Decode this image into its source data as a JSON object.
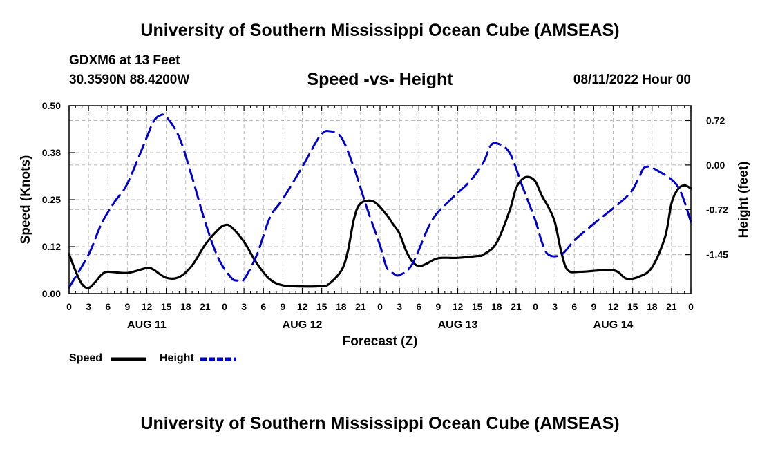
{
  "header": {
    "title": "University of Southern Mississippi Ocean Cube (AMSEAS)",
    "station": "GDXM6 at 13 Feet",
    "coords": "30.3590N  88.4200W",
    "subtitle": "Speed -vs- Height",
    "date": "08/11/2022 Hour 00"
  },
  "footer": {
    "title": "University of Southern Mississippi Ocean Cube (AMSEAS)"
  },
  "colors": {
    "speed": "#000000",
    "height": "#0000cc",
    "grid": "#bbbbbb"
  },
  "chart_data": {
    "type": "line",
    "title": "Speed -vs- Height",
    "xlabel": "Forecast (Z)",
    "ylabel": "Speed (Knots)",
    "y2label": "Height (feet)",
    "xlim": [
      0,
      96
    ],
    "ylim": [
      0,
      0.5
    ],
    "y2lim": [
      -2.08,
      0.96
    ],
    "x_ticks": [
      0,
      3,
      6,
      9,
      12,
      15,
      18,
      21,
      24,
      27,
      30,
      33,
      36,
      39,
      42,
      45,
      48,
      51,
      54,
      57,
      60,
      63,
      66,
      69,
      72,
      75,
      78,
      81,
      84,
      87,
      90,
      93,
      96
    ],
    "x_tick_labels": [
      "0",
      "3",
      "6",
      "9",
      "12",
      "15",
      "18",
      "21",
      "0",
      "3",
      "6",
      "9",
      "12",
      "15",
      "18",
      "21",
      "0",
      "3",
      "6",
      "9",
      "12",
      "15",
      "18",
      "21",
      "0",
      "3",
      "6",
      "9",
      "12",
      "15",
      "18",
      "21",
      "0"
    ],
    "y_ticks": [
      0,
      0.125,
      0.25,
      0.375,
      0.5
    ],
    "y_tick_labels": [
      "0.00",
      "0.12",
      "0.25",
      "0.38",
      "0.50"
    ],
    "y2_ticks": [
      -1.45,
      -0.72,
      0.0,
      0.72
    ],
    "y2_tick_labels": [
      "-1.45",
      "-0.72",
      "0.00",
      "0.72"
    ],
    "day_labels": [
      {
        "x": 12,
        "label": "AUG 11"
      },
      {
        "x": 36,
        "label": "AUG 12"
      },
      {
        "x": 60,
        "label": "AUG 13"
      },
      {
        "x": 84,
        "label": "AUG 14"
      }
    ],
    "legend": [
      {
        "name": "Speed",
        "color": "#000000",
        "style": "solid"
      },
      {
        "name": "Height",
        "color": "#0000cc",
        "style": "dashed"
      }
    ],
    "series": [
      {
        "name": "Speed",
        "axis": "left",
        "x": [
          0,
          1,
          2,
          3,
          4,
          5,
          6,
          9,
          12,
          13,
          15,
          17,
          19,
          21,
          23,
          24,
          25,
          27,
          29,
          31,
          33,
          36,
          39,
          40,
          42,
          43,
          44,
          45,
          47,
          49,
          50,
          51,
          52,
          53,
          54,
          55,
          57,
          60,
          63,
          64,
          66,
          68,
          69,
          70,
          71,
          72,
          73,
          74,
          75,
          76,
          77,
          79,
          84,
          86,
          88,
          90,
          92,
          93,
          94,
          95,
          96
        ],
        "y": [
          0.105,
          0.06,
          0.025,
          0.015,
          0.03,
          0.05,
          0.058,
          0.055,
          0.068,
          0.064,
          0.042,
          0.044,
          0.075,
          0.13,
          0.17,
          0.182,
          0.178,
          0.138,
          0.08,
          0.038,
          0.022,
          0.019,
          0.02,
          0.024,
          0.06,
          0.11,
          0.2,
          0.24,
          0.245,
          0.21,
          0.185,
          0.16,
          0.115,
          0.085,
          0.073,
          0.078,
          0.094,
          0.095,
          0.1,
          0.104,
          0.135,
          0.22,
          0.28,
          0.305,
          0.31,
          0.298,
          0.26,
          0.23,
          0.19,
          0.11,
          0.062,
          0.058,
          0.062,
          0.04,
          0.045,
          0.07,
          0.15,
          0.24,
          0.278,
          0.288,
          0.28
        ]
      },
      {
        "name": "Height",
        "axis": "right",
        "x": [
          0,
          3,
          5,
          7,
          9,
          12,
          13,
          14,
          15,
          17,
          19,
          21,
          23,
          25,
          26,
          27,
          29,
          31,
          33,
          36,
          38,
          39,
          40,
          42,
          44,
          46,
          48,
          49,
          50,
          51,
          53,
          56,
          59,
          60,
          62,
          64,
          65,
          66,
          68,
          70,
          72,
          73,
          74,
          76,
          78,
          81,
          84,
          86,
          87,
          88,
          89,
          91,
          94,
          96
        ],
        "y": [
          -1.98,
          -1.45,
          -0.95,
          -0.6,
          -0.3,
          0.45,
          0.7,
          0.8,
          0.78,
          0.45,
          -0.2,
          -0.92,
          -1.5,
          -1.82,
          -1.87,
          -1.85,
          -1.45,
          -0.85,
          -0.55,
          -0.03,
          0.35,
          0.5,
          0.55,
          0.45,
          -0.05,
          -0.7,
          -1.3,
          -1.65,
          -1.75,
          -1.78,
          -1.6,
          -0.9,
          -0.55,
          -0.45,
          -0.25,
          0.05,
          0.3,
          0.35,
          0.2,
          -0.35,
          -0.9,
          -1.25,
          -1.45,
          -1.45,
          -1.22,
          -0.95,
          -0.7,
          -0.52,
          -0.4,
          -0.2,
          -0.03,
          -0.1,
          -0.35,
          -0.92
        ]
      }
    ]
  }
}
